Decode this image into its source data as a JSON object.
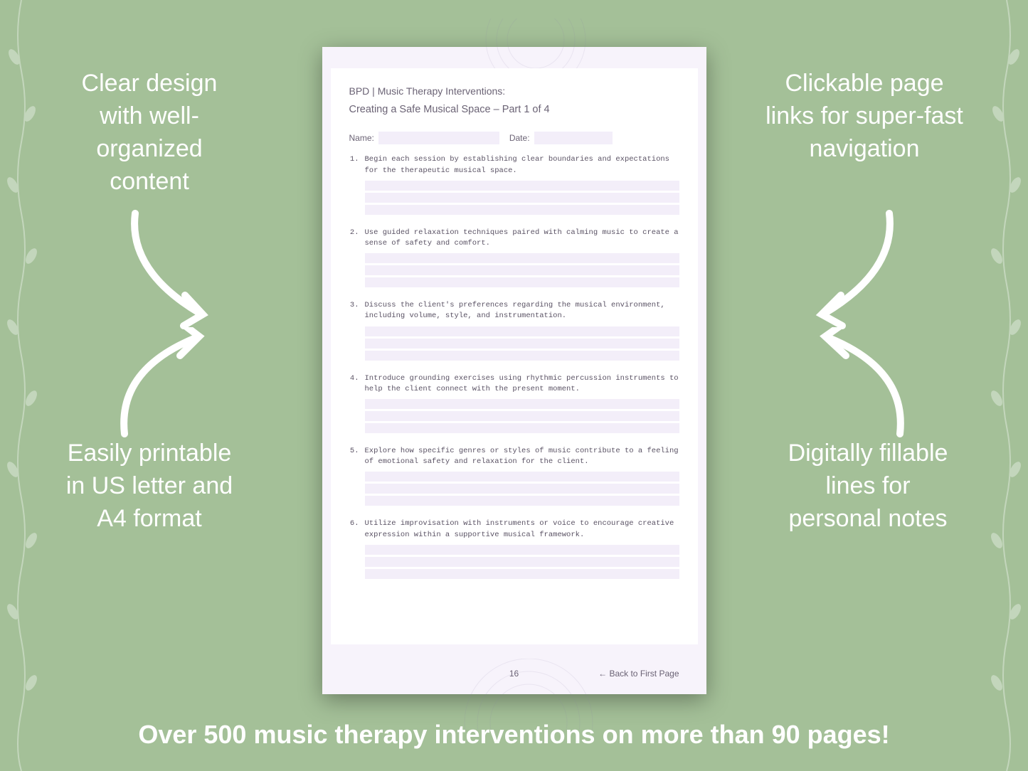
{
  "background_color": "#a4c098",
  "callouts": {
    "top_left": "Clear design with well-organized content",
    "top_right": "Clickable page links for super-fast navigation",
    "bottom_left": "Easily printable in US letter and A4 format",
    "bottom_right": "Digitally fillable lines for personal notes"
  },
  "bottom_banner": "Over 500 music therapy interventions on more than 90 pages!",
  "page": {
    "bg_color": "#f7f3fb",
    "inner_bg": "#ffffff",
    "fill_line_color": "#f3eef9",
    "text_color": "#6b6375",
    "item_font": "Courier New",
    "header_line1": "BPD | Music Therapy Interventions:",
    "header_line2": "Creating a Safe Musical Space – Part 1 of 4",
    "name_label": "Name:",
    "date_label": "Date:",
    "page_number": "16",
    "back_link": "← Back to First Page",
    "items": [
      "Begin each session by establishing clear boundaries and expectations for the therapeutic musical space.",
      "Use guided relaxation techniques paired with calming music to create a sense of safety and comfort.",
      "Discuss the client's preferences regarding the musical environment, including volume, style, and instrumentation.",
      "Introduce grounding exercises using rhythmic percussion instruments to help the client connect with the present moment.",
      "Explore how specific genres or styles of music contribute to a feeling of emotional safety and relaxation for the client.",
      "Utilize improvisation with instruments or voice to encourage creative expression within a supportive musical framework."
    ]
  },
  "callout_style": {
    "color": "#ffffff",
    "font_size": 34
  },
  "arrow_color": "#ffffff",
  "arrow_stroke_width": 10
}
